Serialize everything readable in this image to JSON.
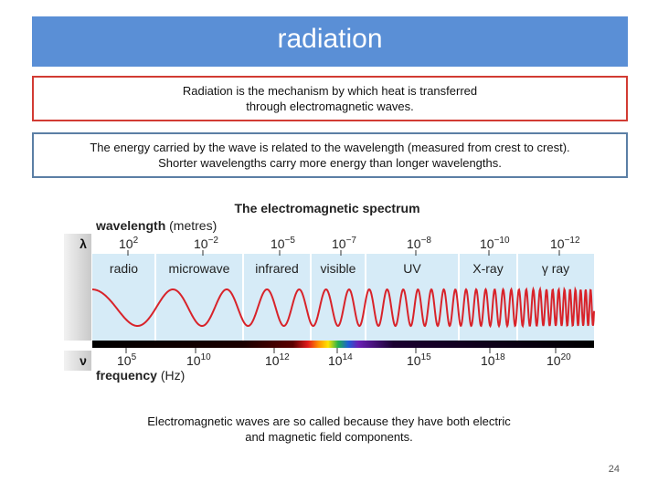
{
  "slide": {
    "title": "radiation",
    "definition_line1": "Radiation is the mechanism by which heat is transferred",
    "definition_line2": "through electromagnetic waves.",
    "energy_line1": "The energy carried by the wave is related to the wavelength (measured from crest to crest).",
    "energy_line2": "Shorter wavelengths carry more energy than longer wavelengths.",
    "note_line1": "Electromagnetic waves are so called because they have both electric",
    "note_line2": "and magnetic field components.",
    "page_number": "24"
  },
  "spectrum": {
    "title": "The electromagnetic spectrum",
    "wavelength_label_bold": "wavelength",
    "wavelength_label_unit": "(metres)",
    "lambda_symbol": "λ",
    "nu_symbol": "ν",
    "frequency_label_bold": "frequency",
    "frequency_label_unit": "(Hz)",
    "wavelength_ticks": [
      {
        "base": "10",
        "exp": "2"
      },
      {
        "base": "10",
        "exp": "−2"
      },
      {
        "base": "10",
        "exp": "−5"
      },
      {
        "base": "10",
        "exp": "−7"
      },
      {
        "base": "10",
        "exp": "−8"
      },
      {
        "base": "10",
        "exp": "−10"
      },
      {
        "base": "10",
        "exp": "−12"
      }
    ],
    "bands": [
      "radio",
      "microwave",
      "infrared",
      "visible",
      "UV",
      "X-ray",
      "γ ray"
    ],
    "frequency_ticks": [
      {
        "base": "10",
        "exp": "5"
      },
      {
        "base": "10",
        "exp": "10"
      },
      {
        "base": "10",
        "exp": "12"
      },
      {
        "base": "10",
        "exp": "14"
      },
      {
        "base": "10",
        "exp": "15"
      },
      {
        "base": "10",
        "exp": "18"
      },
      {
        "base": "10",
        "exp": "20"
      }
    ],
    "colors": {
      "band_fill": "#d6ebf7",
      "wave": "#d8232a",
      "title_bar": "#5a8fd6",
      "definition_border": "#d23b33",
      "energy_border": "#5b7fa5"
    }
  }
}
